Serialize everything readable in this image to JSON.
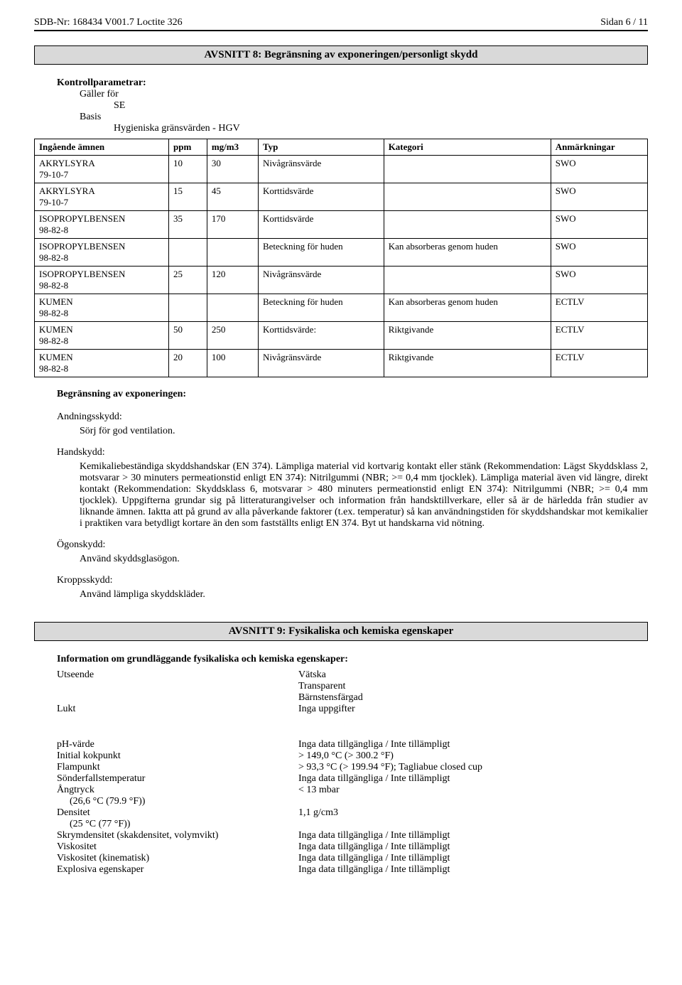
{
  "header": {
    "left": "SDB-Nr:  168434   V001.7    Loctite 326",
    "right": "Sidan 6 / 11"
  },
  "section8": {
    "title": "AVSNITT 8: Begränsning av exponeringen/personligt skydd",
    "kontroll_label": "Kontrollparametrar:",
    "galler_label": "Gäller för",
    "galler_value": "SE",
    "basis_label": "Basis",
    "basis_value": "Hygieniska gränsvärden - HGV",
    "table": {
      "headers": [
        "Ingående ämnen",
        "ppm",
        "mg/m3",
        "Typ",
        "Kategori",
        "Anmärkningar"
      ],
      "rows": [
        {
          "name": "AKRYLSYRA",
          "cas": "79-10-7",
          "ppm": "10",
          "mg": "30",
          "typ": "Nivågränsvärde",
          "kat": "",
          "anm": "SWO"
        },
        {
          "name": "AKRYLSYRA",
          "cas": "79-10-7",
          "ppm": "15",
          "mg": "45",
          "typ": "Korttidsvärde",
          "kat": "",
          "anm": "SWO"
        },
        {
          "name": "ISOPROPYLBENSEN",
          "cas": "98-82-8",
          "ppm": "35",
          "mg": "170",
          "typ": "Korttidsvärde",
          "kat": "",
          "anm": "SWO"
        },
        {
          "name": "ISOPROPYLBENSEN",
          "cas": "98-82-8",
          "ppm": "",
          "mg": "",
          "typ": "Beteckning för huden",
          "kat": "Kan absorberas genom huden",
          "anm": "SWO"
        },
        {
          "name": "ISOPROPYLBENSEN",
          "cas": "98-82-8",
          "ppm": "25",
          "mg": "120",
          "typ": "Nivågränsvärde",
          "kat": "",
          "anm": "SWO"
        },
        {
          "name": "KUMEN",
          "cas": "98-82-8",
          "ppm": "",
          "mg": "",
          "typ": "Beteckning för huden",
          "kat": "Kan absorberas genom huden",
          "anm": "ECTLV"
        },
        {
          "name": "KUMEN",
          "cas": "98-82-8",
          "ppm": "50",
          "mg": "250",
          "typ": "Korttidsvärde:",
          "kat": "Riktgivande",
          "anm": "ECTLV"
        },
        {
          "name": "KUMEN",
          "cas": "98-82-8",
          "ppm": "20",
          "mg": "100",
          "typ": "Nivågränsvärde",
          "kat": "Riktgivande",
          "anm": "ECTLV"
        }
      ]
    },
    "begransning_label": "Begränsning av exponeringen:",
    "andning_label": "Andningsskydd:",
    "andning_text": "Sörj för god ventilation.",
    "hand_label": "Handskydd:",
    "hand_text": "Kemikaliebeständiga skyddshandskar (EN 374). Lämpliga material vid kortvarig kontakt eller stänk (Rekommendation: Lägst Skyddsklass 2, motsvarar > 30 minuters permeationstid enligt EN 374): Nitrilgummi (NBR; >= 0,4 mm tjocklek). Lämpliga material även vid längre, direkt kontakt (Rekommendation: Skyddsklass 6, motsvarar > 480 minuters permeationstid enligt EN 374): Nitrilgummi (NBR; >= 0,4 mm tjocklek). Uppgifterna grundar sig på litteraturangivelser och information från handsktillverkare, eller så är de härledda från studier av liknande ämnen. Iaktta att på grund av alla påverkande faktorer (t.ex. temperatur) så kan användningstiden för skyddshandskar mot kemikalier i praktiken vara betydligt kortare än den som fastställts enligt EN 374. Byt ut handskarna vid nötning.",
    "ogon_label": "Ögonskydd:",
    "ogon_text": "Använd skyddsglasögon.",
    "kropp_label": "Kroppsskydd:",
    "kropp_text": "Använd lämpliga skyddskläder."
  },
  "section9": {
    "title": "AVSNITT 9: Fysikaliska och kemiska egenskaper",
    "info_label": "Information om grundläggande fysikaliska och kemiska egenskaper:",
    "top": [
      {
        "k": "Utseende",
        "v": "Vätska"
      },
      {
        "k": "",
        "v": "Transparent"
      },
      {
        "k": "",
        "v": "Bärnstensfärgad"
      },
      {
        "k": "Lukt",
        "v": "Inga uppgifter"
      }
    ],
    "bottom": [
      {
        "k": "pH-värde",
        "sub": "",
        "v": "Inga data tillgängliga / Inte tillämpligt"
      },
      {
        "k": "Initial kokpunkt",
        "sub": "",
        "v": "> 149,0 °C (> 300.2 °F)"
      },
      {
        "k": "Flampunkt",
        "sub": "",
        "v": "> 93,3 °C (> 199.94 °F); Tagliabue closed cup"
      },
      {
        "k": "Sönderfallstemperatur",
        "sub": "",
        "v": "Inga data tillgängliga / Inte tillämpligt"
      },
      {
        "k": "Ångtryck",
        "sub": "(26,6 °C (79.9 °F))",
        "v": "< 13 mbar"
      },
      {
        "k": "Densitet",
        "sub": "(25 °C (77 °F))",
        "v": "1,1 g/cm3"
      },
      {
        "k": "Skrymdensitet (skakdensitet, volymvikt)",
        "sub": "",
        "v": "Inga data tillgängliga / Inte tillämpligt"
      },
      {
        "k": "Viskositet",
        "sub": "",
        "v": "Inga data tillgängliga / Inte tillämpligt"
      },
      {
        "k": "Viskositet (kinematisk)",
        "sub": "",
        "v": "Inga data tillgängliga / Inte tillämpligt"
      },
      {
        "k": "Explosiva egenskaper",
        "sub": "",
        "v": "Inga data tillgängliga / Inte tillämpligt"
      }
    ]
  }
}
